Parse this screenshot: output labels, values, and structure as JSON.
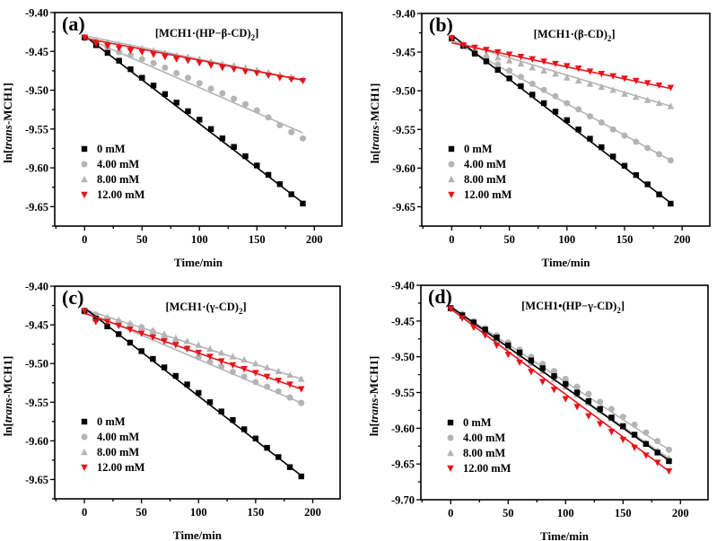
{
  "chart_data": [
    {
      "type": "scatter",
      "panel_label": "(a)",
      "title": "[MCH1·(HP−β-CD)",
      "title_subscript": "2",
      "title_suffix": "]",
      "xlabel": "Time/min",
      "ylabel_prefix": "ln[",
      "ylabel_italic": "trans",
      "ylabel_suffix": "-MCH1]",
      "xlim": [
        -26,
        224
      ],
      "ylim": [
        -9.675,
        -9.4
      ],
      "xticks": [
        0,
        50,
        100,
        150,
        200
      ],
      "yticks": [
        -9.4,
        -9.45,
        -9.5,
        -9.55,
        -9.6,
        -9.65
      ],
      "ytick_labels": [
        "-9.40",
        "-9.45",
        "-9.50",
        "-9.55",
        "-9.60",
        "-9.65"
      ],
      "legend_position": "bottom-left",
      "x": [
        0,
        10,
        20,
        30,
        40,
        50,
        60,
        70,
        80,
        90,
        100,
        110,
        120,
        130,
        140,
        150,
        160,
        170,
        180,
        190
      ],
      "series": [
        {
          "name": "0 mM",
          "marker": "square",
          "color": "#000000",
          "fit": [
            -9.43,
            -9.645
          ],
          "values": [
            -9.432,
            -9.442,
            -9.452,
            -9.462,
            -9.473,
            -9.484,
            -9.494,
            -9.505,
            -9.516,
            -9.527,
            -9.538,
            -9.55,
            -9.562,
            -9.573,
            -9.585,
            -9.597,
            -9.609,
            -9.621,
            -9.634,
            -9.646
          ]
        },
        {
          "name": "4.00 mM",
          "marker": "circle",
          "color": "#b4b4b4",
          "fit": [
            -9.432,
            -9.555
          ],
          "values": [
            -9.433,
            -9.44,
            -9.446,
            -9.451,
            -9.455,
            -9.46,
            -9.465,
            -9.471,
            -9.478,
            -9.484,
            -9.491,
            -9.498,
            -9.504,
            -9.511,
            -9.518,
            -9.526,
            -9.535,
            -9.545,
            -9.554,
            -9.562
          ]
        },
        {
          "name": "8.00 mM",
          "marker": "triangle-up",
          "color": "#b4b4b4",
          "fit": [
            -9.43,
            -9.487
          ],
          "values": [
            -9.431,
            -9.435,
            -9.438,
            -9.441,
            -9.444,
            -9.446,
            -9.449,
            -9.452,
            -9.455,
            -9.457,
            -9.46,
            -9.463,
            -9.466,
            -9.468,
            -9.471,
            -9.474,
            -9.477,
            -9.48,
            -9.483,
            -9.486
          ]
        },
        {
          "name": "12.00 mM",
          "marker": "triangle-down",
          "color": "#e8141a",
          "fit": [
            -9.433,
            -9.487
          ],
          "values": [
            -9.432,
            -9.44,
            -9.443,
            -9.446,
            -9.449,
            -9.451,
            -9.454,
            -9.457,
            -9.46,
            -9.462,
            -9.465,
            -9.468,
            -9.471,
            -9.473,
            -9.476,
            -9.478,
            -9.481,
            -9.484,
            -9.486,
            -9.488
          ]
        }
      ]
    },
    {
      "type": "scatter",
      "panel_label": "(b)",
      "title": "[MCH1·(β-CD)",
      "title_subscript": "2",
      "title_suffix": "]",
      "xlabel": "Time/min",
      "ylabel_prefix": "ln[",
      "ylabel_italic": "trans",
      "ylabel_suffix": "-MCH1]",
      "xlim": [
        -26,
        224
      ],
      "ylim": [
        -9.675,
        -9.4
      ],
      "xticks": [
        0,
        50,
        100,
        150,
        200
      ],
      "yticks": [
        -9.4,
        -9.45,
        -9.5,
        -9.55,
        -9.6,
        -9.65
      ],
      "ytick_labels": [
        "-9.40",
        "-9.45",
        "-9.50",
        "-9.55",
        "-9.60",
        "-9.65"
      ],
      "legend_position": "bottom-left",
      "x": [
        0,
        10,
        20,
        30,
        40,
        50,
        60,
        70,
        80,
        90,
        100,
        110,
        120,
        130,
        140,
        150,
        160,
        170,
        180,
        190
      ],
      "series": [
        {
          "name": "0 mM",
          "marker": "square",
          "color": "#000000",
          "fit": [
            -9.428,
            -9.645
          ],
          "values": [
            -9.432,
            -9.442,
            -9.452,
            -9.462,
            -9.473,
            -9.484,
            -9.494,
            -9.505,
            -9.516,
            -9.527,
            -9.538,
            -9.55,
            -9.562,
            -9.573,
            -9.585,
            -9.597,
            -9.609,
            -9.621,
            -9.634,
            -9.646
          ]
        },
        {
          "name": "4.00 mM",
          "marker": "circle",
          "color": "#b4b4b4",
          "fit": [
            -9.435,
            -9.59
          ],
          "values": [
            -9.433,
            -9.441,
            -9.449,
            -9.457,
            -9.466,
            -9.474,
            -9.482,
            -9.491,
            -9.499,
            -9.507,
            -9.516,
            -9.524,
            -9.533,
            -9.541,
            -9.55,
            -9.558,
            -9.566,
            -9.574,
            -9.582,
            -9.59
          ]
        },
        {
          "name": "8.00 mM",
          "marker": "triangle-up",
          "color": "#b4b4b4",
          "fit": [
            -9.435,
            -9.52
          ],
          "values": [
            -9.433,
            -9.44,
            -9.448,
            -9.453,
            -9.457,
            -9.461,
            -9.465,
            -9.47,
            -9.474,
            -9.478,
            -9.483,
            -9.487,
            -9.491,
            -9.495,
            -9.499,
            -9.504,
            -9.508,
            -9.512,
            -9.516,
            -9.52
          ]
        },
        {
          "name": "12.00 mM",
          "marker": "triangle-down",
          "color": "#e8141a",
          "fit": [
            -9.438,
            -9.497
          ],
          "values": [
            -9.432,
            -9.441,
            -9.444,
            -9.447,
            -9.45,
            -9.453,
            -9.456,
            -9.459,
            -9.462,
            -9.465,
            -9.468,
            -9.471,
            -9.475,
            -9.478,
            -9.481,
            -9.484,
            -9.487,
            -9.49,
            -9.493,
            -9.496
          ]
        }
      ]
    },
    {
      "type": "scatter",
      "panel_label": "(c)",
      "title": "[MCH1·(γ-CD)",
      "title_subscript": "2",
      "title_suffix": "]",
      "xlabel": "Time/min",
      "ylabel_prefix": "ln[",
      "ylabel_italic": "trans",
      "ylabel_suffix": "-MCH1]",
      "xlim": [
        -26,
        224
      ],
      "ylim": [
        -9.675,
        -9.4
      ],
      "xticks": [
        0,
        50,
        100,
        150,
        200
      ],
      "yticks": [
        -9.4,
        -9.45,
        -9.5,
        -9.55,
        -9.6,
        -9.65
      ],
      "ytick_labels": [
        "-9.40",
        "-9.45",
        "-9.50",
        "-9.55",
        "-9.60",
        "-9.65"
      ],
      "legend_position": "bottom-left",
      "x": [
        0,
        10,
        20,
        30,
        40,
        50,
        60,
        70,
        80,
        90,
        100,
        110,
        120,
        130,
        140,
        150,
        160,
        170,
        180,
        190
      ],
      "series": [
        {
          "name": "0 mM",
          "marker": "square",
          "color": "#000000",
          "fit": [
            -9.428,
            -9.645
          ],
          "values": [
            -9.432,
            -9.442,
            -9.452,
            -9.462,
            -9.473,
            -9.484,
            -9.494,
            -9.505,
            -9.516,
            -9.527,
            -9.538,
            -9.55,
            -9.562,
            -9.573,
            -9.585,
            -9.597,
            -9.609,
            -9.621,
            -9.634,
            -9.646
          ]
        },
        {
          "name": "4.00 mM",
          "marker": "circle",
          "color": "#b4b4b4",
          "fit": [
            -9.432,
            -9.551
          ],
          "values": [
            -9.433,
            -9.437,
            -9.442,
            -9.446,
            -9.45,
            -9.453,
            -9.459,
            -9.466,
            -9.473,
            -9.48,
            -9.492,
            -9.498,
            -9.504,
            -9.511,
            -9.517,
            -9.524,
            -9.53,
            -9.536,
            -9.544,
            -9.551
          ]
        },
        {
          "name": "8.00 mM",
          "marker": "triangle-up",
          "color": "#b4b4b4",
          "fit": [
            -9.43,
            -9.52
          ],
          "values": [
            -9.431,
            -9.436,
            -9.44,
            -9.444,
            -9.448,
            -9.453,
            -9.457,
            -9.462,
            -9.467,
            -9.471,
            -9.476,
            -9.481,
            -9.486,
            -9.491,
            -9.495,
            -9.5,
            -9.505,
            -9.51,
            -9.515,
            -9.52
          ]
        },
        {
          "name": "12.00 mM",
          "marker": "triangle-down",
          "color": "#e8141a",
          "fit": [
            -9.435,
            -9.533
          ],
          "values": [
            -9.432,
            -9.446,
            -9.446,
            -9.451,
            -9.456,
            -9.461,
            -9.466,
            -9.471,
            -9.476,
            -9.481,
            -9.486,
            -9.491,
            -9.497,
            -9.502,
            -9.507,
            -9.512,
            -9.517,
            -9.522,
            -9.527,
            -9.533
          ]
        }
      ]
    },
    {
      "type": "scatter",
      "panel_label": "(d)",
      "title": "[MCH1•(HP−γ-CD)",
      "title_subscript": "2",
      "title_suffix": "]",
      "xlabel": "Time/min",
      "ylabel_prefix": "ln[",
      "ylabel_italic": "trans",
      "ylabel_suffix": "-MCH1]",
      "xlim": [
        -26,
        224
      ],
      "ylim": [
        -9.7,
        -9.4
      ],
      "xticks": [
        0,
        50,
        100,
        150,
        200
      ],
      "yticks": [
        -9.4,
        -9.45,
        -9.5,
        -9.55,
        -9.6,
        -9.65,
        -9.7
      ],
      "ytick_labels": [
        "-9.40",
        "-9.45",
        "-9.50",
        "-9.55",
        "-9.60",
        "-9.65",
        "-9.70"
      ],
      "legend_position": "bottom-left",
      "x": [
        0,
        10,
        20,
        30,
        40,
        50,
        60,
        70,
        80,
        90,
        100,
        110,
        120,
        130,
        140,
        150,
        160,
        170,
        180,
        190
      ],
      "series": [
        {
          "name": "0 mM",
          "marker": "square",
          "color": "#000000",
          "fit": [
            -9.43,
            -9.645
          ],
          "values": [
            -9.432,
            -9.442,
            -9.452,
            -9.462,
            -9.473,
            -9.484,
            -9.494,
            -9.505,
            -9.516,
            -9.527,
            -9.538,
            -9.55,
            -9.562,
            -9.573,
            -9.585,
            -9.597,
            -9.609,
            -9.622,
            -9.634,
            -9.646
          ]
        },
        {
          "name": "4.00 mM",
          "marker": "circle",
          "color": "#b4b4b4",
          "fit": [
            -9.43,
            -9.63
          ],
          "values": [
            -9.432,
            -9.44,
            -9.45,
            -9.46,
            -9.47,
            -9.48,
            -9.49,
            -9.5,
            -9.51,
            -9.52,
            -9.531,
            -9.542,
            -9.552,
            -9.563,
            -9.573,
            -9.584,
            -9.595,
            -9.606,
            -9.618,
            -9.63
          ]
        },
        {
          "name": "8.00 mM",
          "marker": "triangle-up",
          "color": "#b4b4b4",
          "fit": [
            -9.432,
            -9.642
          ],
          "values": [
            -9.432,
            -9.443,
            -9.454,
            -9.465,
            -9.476,
            -9.487,
            -9.498,
            -9.509,
            -9.52,
            -9.531,
            -9.542,
            -9.553,
            -9.564,
            -9.575,
            -9.586,
            -9.598,
            -9.609,
            -9.62,
            -9.631,
            -9.642
          ]
        },
        {
          "name": "12.00 mM",
          "marker": "triangle-down",
          "color": "#e8141a",
          "fit": [
            -9.433,
            -9.66
          ],
          "values": [
            -9.433,
            -9.446,
            -9.459,
            -9.47,
            -9.484,
            -9.497,
            -9.508,
            -9.521,
            -9.535,
            -9.546,
            -9.559,
            -9.57,
            -9.583,
            -9.594,
            -9.605,
            -9.616,
            -9.627,
            -9.638,
            -9.648,
            -9.66
          ]
        }
      ]
    }
  ]
}
